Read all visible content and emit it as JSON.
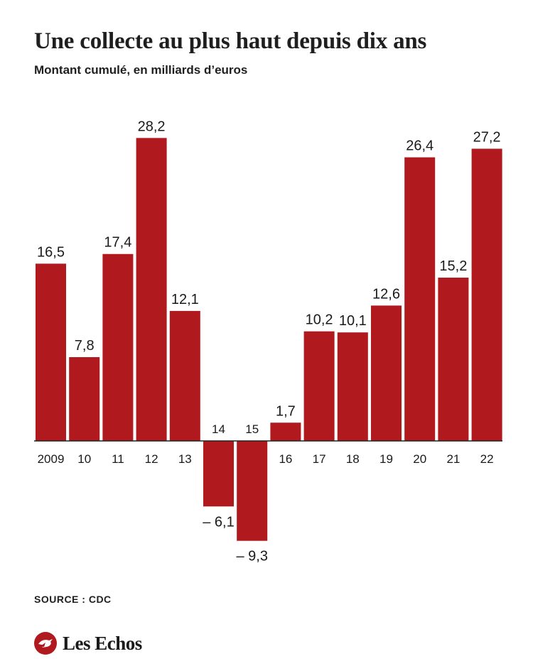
{
  "header": {
    "title": "Une collecte au plus haut depuis dix ans",
    "subtitle": "Montant cumulé, en milliards d’euros"
  },
  "footer": {
    "source": "SOURCE : CDC",
    "logo_text": "Les Echos",
    "logo_icon": "les-echos-bird-icon"
  },
  "colors": {
    "bar": "#b0191d",
    "text": "#1a1a1a",
    "axis": "#222222"
  },
  "chart_data": {
    "type": "bar",
    "title": "Une collecte au plus haut depuis dix ans",
    "subtitle": "Montant cumulé, en milliards d’euros",
    "xlabel": "",
    "ylabel": "",
    "categories": [
      "2009",
      "10",
      "11",
      "12",
      "13",
      "14",
      "15",
      "16",
      "17",
      "18",
      "19",
      "20",
      "21",
      "22"
    ],
    "values": [
      16.5,
      7.8,
      17.4,
      28.2,
      12.1,
      -6.1,
      -9.3,
      1.7,
      10.2,
      10.1,
      12.6,
      26.4,
      15.2,
      27.2
    ],
    "value_labels": [
      "16,5",
      "7,8",
      "17,4",
      "28,2",
      "12,1",
      "– 6,1",
      "– 9,3",
      "1,7",
      "10,2",
      "10,1",
      "12,6",
      "26,4",
      "15,2",
      "27,2"
    ],
    "ylim": [
      -9.3,
      28.2
    ],
    "grid": false,
    "legend": "none"
  }
}
